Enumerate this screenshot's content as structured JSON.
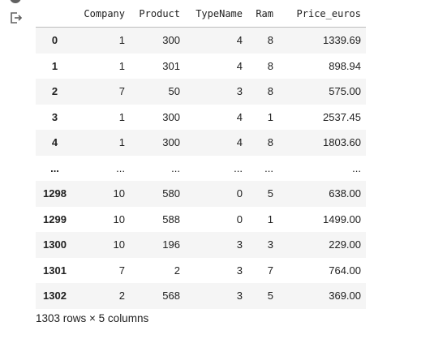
{
  "table": {
    "columns": [
      "Company",
      "Product",
      "TypeName",
      "Ram",
      "Price_euros"
    ],
    "rows": [
      {
        "index": "0",
        "cells": [
          "1",
          "300",
          "4",
          "8",
          "1339.69"
        ]
      },
      {
        "index": "1",
        "cells": [
          "1",
          "301",
          "4",
          "8",
          "898.94"
        ]
      },
      {
        "index": "2",
        "cells": [
          "7",
          "50",
          "3",
          "8",
          "575.00"
        ]
      },
      {
        "index": "3",
        "cells": [
          "1",
          "300",
          "4",
          "1",
          "2537.45"
        ]
      },
      {
        "index": "4",
        "cells": [
          "1",
          "300",
          "4",
          "8",
          "1803.60"
        ]
      },
      {
        "index": "...",
        "cells": [
          "...",
          "...",
          "...",
          "...",
          "..."
        ]
      },
      {
        "index": "1298",
        "cells": [
          "10",
          "580",
          "0",
          "5",
          "638.00"
        ]
      },
      {
        "index": "1299",
        "cells": [
          "10",
          "588",
          "0",
          "1",
          "1499.00"
        ]
      },
      {
        "index": "1300",
        "cells": [
          "10",
          "196",
          "3",
          "3",
          "229.00"
        ]
      },
      {
        "index": "1301",
        "cells": [
          "7",
          "2",
          "3",
          "7",
          "764.00"
        ]
      },
      {
        "index": "1302",
        "cells": [
          "2",
          "568",
          "3",
          "5",
          "369.00"
        ]
      }
    ]
  },
  "footer": {
    "shape_text": "1303 rows × 5 columns"
  },
  "icons": {
    "output": "output-redirect-icon",
    "gutter": "cell-status-icon"
  }
}
